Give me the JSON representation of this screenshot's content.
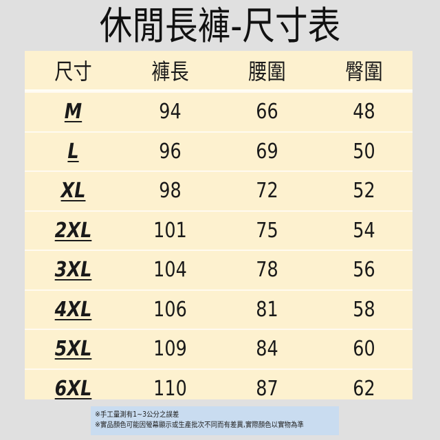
{
  "title": "休閒長褲-尺寸表",
  "table": {
    "headers": [
      "尺寸",
      "褲長",
      "腰圍",
      "臀圍"
    ],
    "rows": [
      [
        "M",
        "94",
        "66",
        "48"
      ],
      [
        "L",
        "96",
        "69",
        "50"
      ],
      [
        "XL",
        "98",
        "72",
        "52"
      ],
      [
        "2XL",
        "101",
        "75",
        "54"
      ],
      [
        "3XL",
        "104",
        "78",
        "56"
      ],
      [
        "4XL",
        "106",
        "81",
        "58"
      ],
      [
        "5XL",
        "109",
        "84",
        "60"
      ],
      [
        "6XL",
        "110",
        "87",
        "62"
      ]
    ]
  },
  "notes": [
    "※手工量測有1~3公分之誤差",
    "※實品顏色可能因螢幕顯示或生產批次不同而有差異,實際顏色以實物為準"
  ],
  "colors": {
    "background": "#e0e0e0",
    "table": "#fdf1cf",
    "note": "#c9dcf0"
  }
}
